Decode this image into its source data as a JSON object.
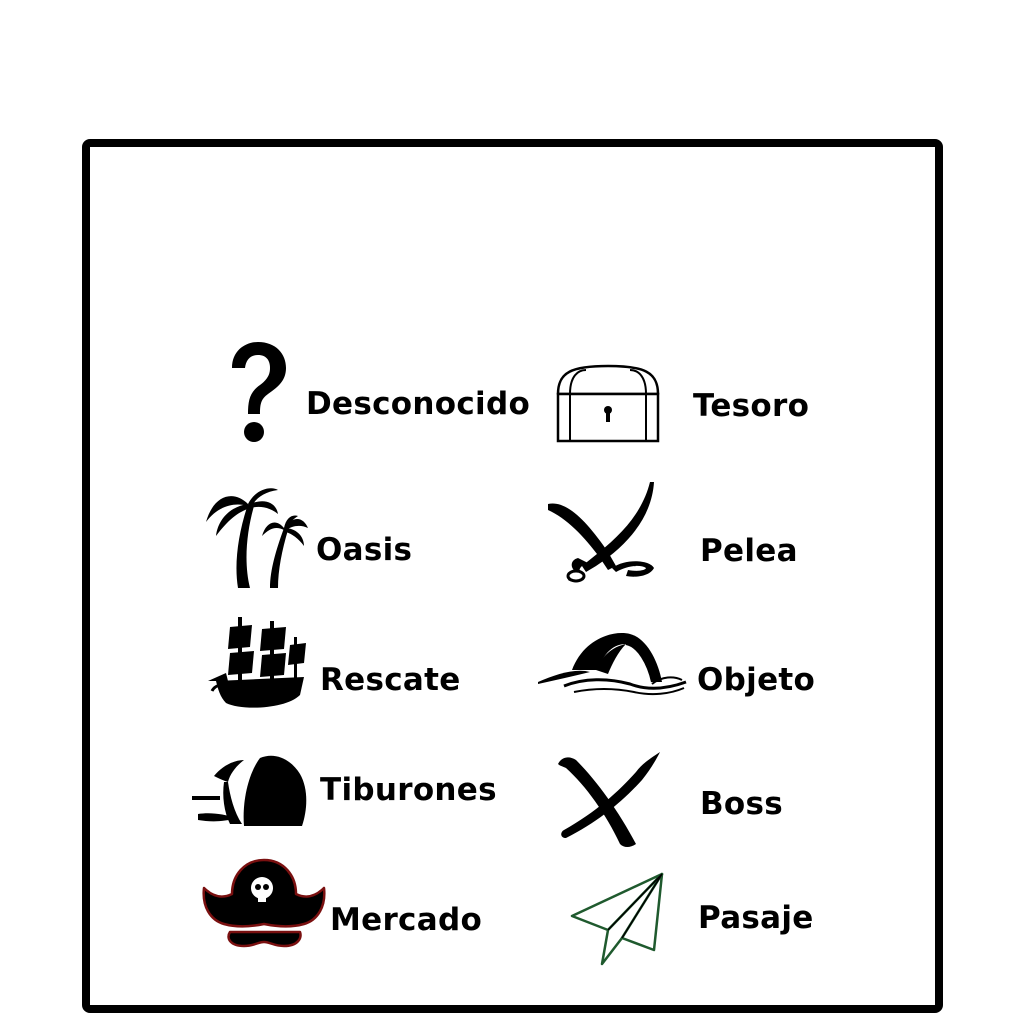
{
  "legend": {
    "items": [
      {
        "label": "Desconocido",
        "icon": "question-mark-icon"
      },
      {
        "label": "Tesoro",
        "icon": "treasure-chest-icon"
      },
      {
        "label": "Oasis",
        "icon": "palm-trees-icon"
      },
      {
        "label": "Pelea",
        "icon": "crossed-swords-icon"
      },
      {
        "label": "Rescate",
        "icon": "pirate-ship-icon"
      },
      {
        "label": "Objeto",
        "icon": "wave-hill-icon"
      },
      {
        "label": "Tiburones",
        "icon": "shark-fin-icon"
      },
      {
        "label": "Boss",
        "icon": "x-mark-icon"
      },
      {
        "label": "Mercado",
        "icon": "pirate-hat-icon"
      },
      {
        "label": "Pasaje",
        "icon": "paper-plane-icon"
      }
    ]
  },
  "colors": {
    "ink": "#000000",
    "hat_outline": "#7a1010",
    "plane_outline": "#1f5a2e",
    "background": "#ffffff"
  }
}
